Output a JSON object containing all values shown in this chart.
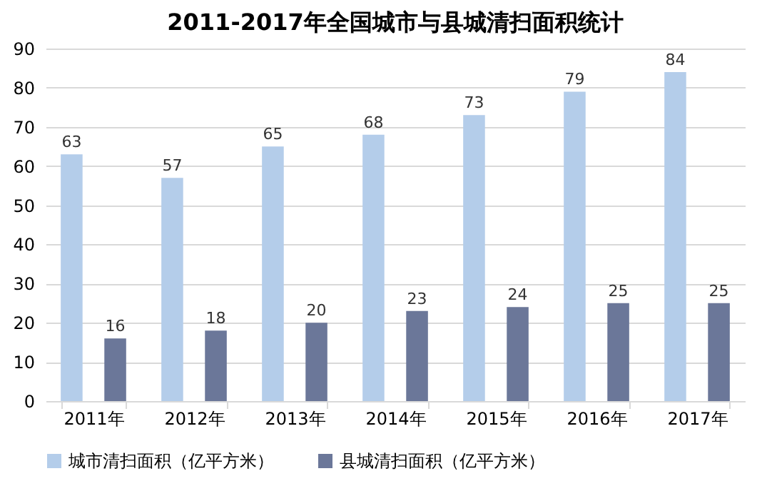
{
  "chart_data": {
    "type": "bar",
    "title": "2011-2017年全国城市与县城清扫面积统计",
    "categories": [
      "2011年",
      "2012年",
      "2013年",
      "2014年",
      "2015年",
      "2016年",
      "2017年"
    ],
    "series": [
      {
        "name": "城市清扫面积（亿平方米）",
        "color": "#b4cdea",
        "values": [
          63,
          57,
          65,
          68,
          73,
          79,
          84
        ]
      },
      {
        "name": "县城清扫面积（亿平方米）",
        "color": "#6b7799",
        "values": [
          16,
          18,
          20,
          23,
          24,
          25,
          25
        ]
      }
    ],
    "ylim": [
      0,
      90
    ],
    "yticks": [
      0,
      10,
      20,
      30,
      40,
      50,
      60,
      70,
      80,
      90
    ],
    "grid": "y",
    "legend": "bottom",
    "data_labels": true
  }
}
